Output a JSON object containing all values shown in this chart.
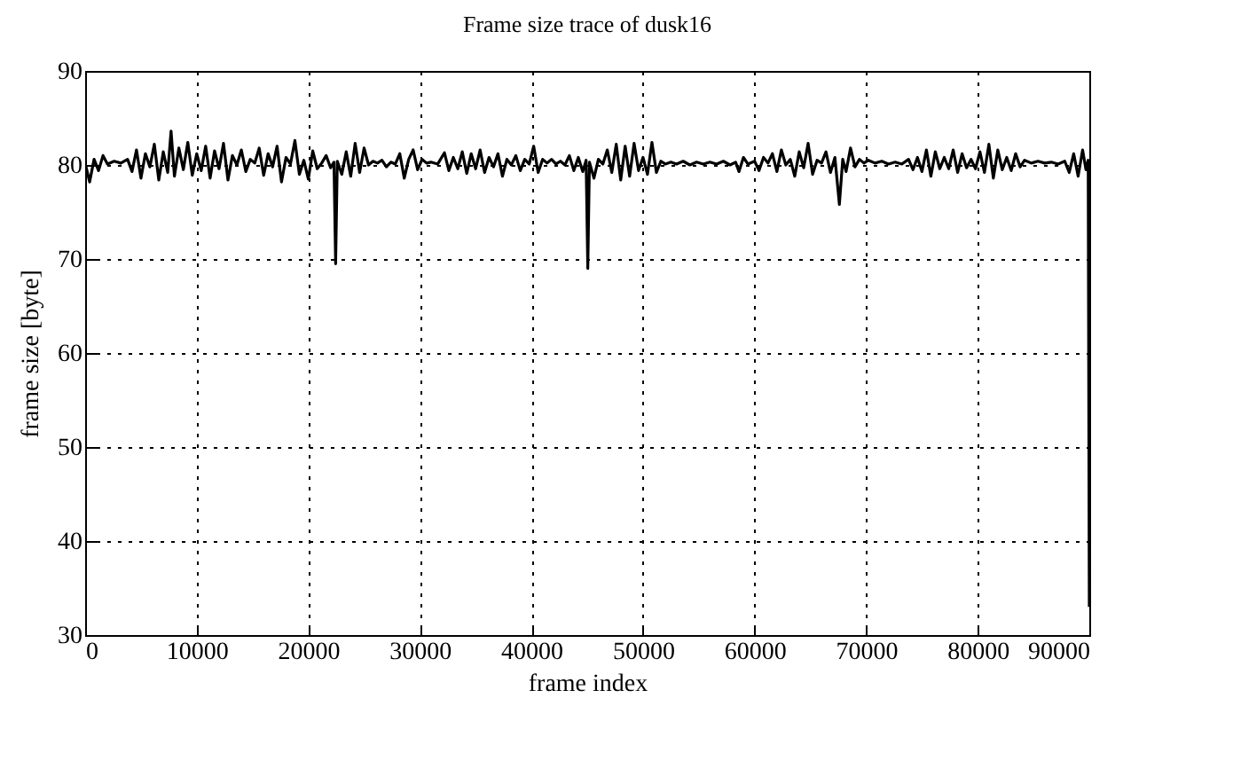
{
  "chart_data": {
    "type": "line",
    "title": "Frame size trace of dusk16",
    "xlabel": "frame index",
    "ylabel": "frame size [byte]",
    "xlim": [
      0,
      90000
    ],
    "xticks": [
      0,
      10000,
      20000,
      30000,
      40000,
      50000,
      60000,
      70000,
      80000,
      90000
    ],
    "ylim": [
      30,
      90
    ],
    "yticks": [
      30,
      40,
      50,
      60,
      70,
      80,
      90
    ],
    "grid": true,
    "legend": false,
    "series": [
      {
        "color": "#000000",
        "x": [
          0,
          400,
          800,
          1200,
          1600,
          2000,
          2600,
          3200,
          3800,
          4200,
          4600,
          5000,
          5400,
          5800,
          6200,
          6600,
          7000,
          7400,
          7700,
          8000,
          8400,
          8800,
          9200,
          9600,
          10000,
          10400,
          10800,
          11200,
          11600,
          12000,
          12400,
          12800,
          13200,
          13600,
          14000,
          14400,
          14800,
          15200,
          15600,
          16000,
          16400,
          16800,
          17200,
          17600,
          18000,
          18400,
          18800,
          19200,
          19600,
          20000,
          20400,
          20800,
          21200,
          21600,
          22000,
          22300,
          22450,
          22600,
          23000,
          23400,
          23800,
          24200,
          24600,
          25000,
          25400,
          25800,
          26200,
          26600,
          27000,
          27400,
          27800,
          28200,
          28600,
          29000,
          29400,
          29800,
          30200,
          30600,
          31000,
          31600,
          32200,
          32600,
          33000,
          33400,
          33800,
          34200,
          34600,
          35000,
          35400,
          35800,
          36200,
          36600,
          37000,
          37400,
          37800,
          38200,
          38600,
          39000,
          39400,
          39800,
          40200,
          40600,
          41000,
          41400,
          41800,
          42200,
          42600,
          43000,
          43400,
          43800,
          44200,
          44600,
          44900,
          45050,
          45200,
          45600,
          46000,
          46400,
          46800,
          47200,
          47600,
          48000,
          48400,
          48800,
          49200,
          49600,
          50000,
          50400,
          50800,
          51200,
          51600,
          52000,
          52500,
          53000,
          53600,
          54200,
          54800,
          55400,
          56000,
          56600,
          57200,
          57800,
          58300,
          58600,
          59000,
          59400,
          60000,
          60400,
          60800,
          61200,
          61600,
          62000,
          62400,
          62800,
          63200,
          63600,
          64000,
          64400,
          64800,
          65200,
          65600,
          66000,
          66400,
          66800,
          67200,
          67600,
          67900,
          68200,
          68600,
          69000,
          69400,
          69800,
          70200,
          70800,
          71400,
          72000,
          72600,
          73200,
          73800,
          74200,
          74600,
          75000,
          75400,
          75800,
          76200,
          76600,
          77000,
          77400,
          77800,
          78200,
          78600,
          79000,
          79400,
          79800,
          80200,
          80600,
          81000,
          81400,
          81800,
          82200,
          82600,
          83000,
          83400,
          83800,
          84200,
          84800,
          85400,
          86000,
          86600,
          87200,
          87800,
          88200,
          88600,
          89000,
          89400,
          89700,
          89900,
          90000
        ],
        "values": [
          80.2,
          78.2,
          80.6,
          79.4,
          81,
          80.1,
          80.4,
          80.2,
          80.6,
          79.3,
          81.6,
          78.6,
          81.2,
          79.8,
          82.2,
          78.4,
          81.4,
          79.2,
          83.6,
          78.8,
          81.8,
          79.5,
          82.4,
          78.9,
          81.2,
          79.4,
          82,
          78.6,
          81.5,
          79.6,
          82.3,
          78.4,
          81,
          80,
          81.6,
          79.3,
          80.6,
          80.2,
          81.8,
          78.9,
          81.2,
          79.8,
          82,
          78.2,
          80.8,
          80.1,
          82.6,
          79,
          80.5,
          78.5,
          81.5,
          79.6,
          80.2,
          81,
          79.7,
          80.3,
          69.5,
          80.4,
          79,
          81.4,
          78.8,
          82.3,
          79.2,
          81.8,
          80,
          80.4,
          80.2,
          80.5,
          79.8,
          80.3,
          80.1,
          81.2,
          78.6,
          80.6,
          81.6,
          79.5,
          80.6,
          80.2,
          80.3,
          80.1,
          81.3,
          79.4,
          80.8,
          79.6,
          81.4,
          79.1,
          81.2,
          79.6,
          81.6,
          79.2,
          80.8,
          79.8,
          81.2,
          78.8,
          80.6,
          80,
          81,
          79.4,
          80.6,
          80.1,
          82,
          79.2,
          80.6,
          80.2,
          80.6,
          80.1,
          80.4,
          80,
          81,
          79.4,
          80.8,
          79.3,
          80.5,
          69,
          80.3,
          78.6,
          80.6,
          80.1,
          81.6,
          79.2,
          82.2,
          78.4,
          82,
          78.8,
          82.3,
          79.4,
          80.8,
          79,
          82.4,
          79.2,
          80.4,
          80.1,
          80.3,
          80.1,
          80.4,
          80,
          80.3,
          80.1,
          80.3,
          80.1,
          80.4,
          80,
          80.3,
          79.3,
          80.8,
          80.1,
          80.4,
          79.4,
          80.8,
          80.2,
          81.2,
          79.3,
          81.6,
          80,
          80.6,
          78.8,
          81.4,
          79.7,
          82.3,
          79,
          80.5,
          80.2,
          81.4,
          79.2,
          80.8,
          75.8,
          80.6,
          79.3,
          81.8,
          79.8,
          80.6,
          80.2,
          80.5,
          80.2,
          80.4,
          80.1,
          80.3,
          80.1,
          80.6,
          79.5,
          80.8,
          79.3,
          81.6,
          78.8,
          81.4,
          79.6,
          80.8,
          79.6,
          81.6,
          79.2,
          81.2,
          79.7,
          80.6,
          79.6,
          81.4,
          79.2,
          82.2,
          78.6,
          81.6,
          79.5,
          80.8,
          79.4,
          81.2,
          79.8,
          80.5,
          80.2,
          80.4,
          80.2,
          80.3,
          80.1,
          80.4,
          79.2,
          81.2,
          78.8,
          81.6,
          79.5,
          80.5,
          33
        ]
      }
    ]
  }
}
